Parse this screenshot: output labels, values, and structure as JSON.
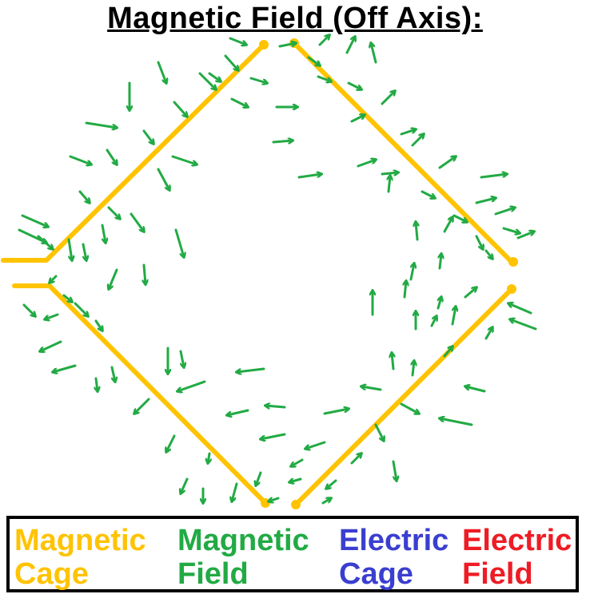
{
  "title": "Magnetic Field (Off Axis):",
  "colors": {
    "magnetic_cage": "#ffc300",
    "magnetic_field": "#22aa44",
    "electric_cage": "#3a3fd0",
    "electric_field": "#ee1c24"
  },
  "legend": [
    {
      "line1": "Magnetic",
      "line2": "Cage",
      "color": "#ffc300"
    },
    {
      "line1": "Magnetic",
      "line2": "Field",
      "color": "#22aa44"
    },
    {
      "line1": "Electric",
      "line2": "Cage",
      "color": "#3a3fd0"
    },
    {
      "line1": "Electric",
      "line2": "Field",
      "color": "#ee1c24"
    }
  ]
}
